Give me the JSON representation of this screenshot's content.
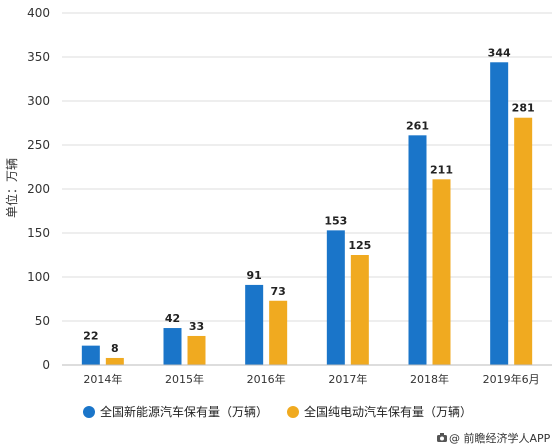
{
  "chart_data": {
    "type": "bar",
    "categories": [
      "2014年",
      "2015年",
      "2016年",
      "2017年",
      "2018年",
      "2019年6月"
    ],
    "series": [
      {
        "name": "全国新能源汽车保有量（万辆）",
        "values": [
          22,
          42,
          91,
          153,
          261,
          344
        ],
        "color": "#1a75c9"
      },
      {
        "name": "全国纯电动汽车保有量（万辆）",
        "values": [
          8,
          33,
          73,
          125,
          211,
          281
        ],
        "color": "#f0aa20"
      }
    ],
    "title": "",
    "xlabel": "",
    "ylabel": "单位：万辆",
    "ylim": [
      0,
      400
    ],
    "yticks": [
      0,
      50,
      100,
      150,
      200,
      250,
      300,
      350,
      400
    ],
    "grid": true,
    "legend_position": "bottom",
    "data_labels": true
  },
  "footer": {
    "source_icon": "camera-icon",
    "source_text": "@ 前瞻经济学人APP"
  }
}
